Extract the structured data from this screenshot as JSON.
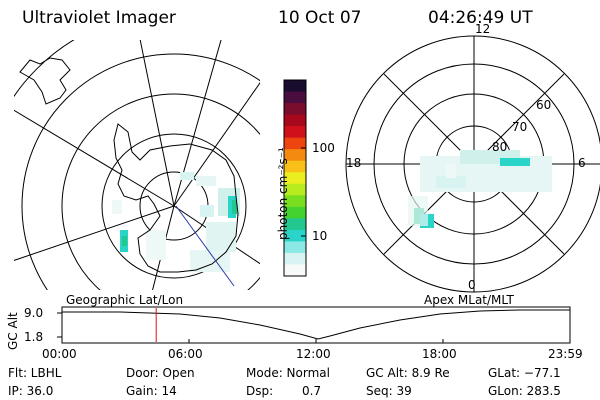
{
  "header": {
    "instrument": "Ultraviolet Imager",
    "date": "10 Oct 07",
    "time": "04:26:49 UT"
  },
  "colorbar": {
    "unit_label": "photon cm⁻²s⁻¹",
    "ticks": [
      "100",
      "10"
    ],
    "colors": [
      "#1a0c2e",
      "#4a0e3e",
      "#7a0c2e",
      "#a8081c",
      "#d0101a",
      "#ee4410",
      "#f58a10",
      "#f8c018",
      "#eaee1e",
      "#b8ec1e",
      "#7ade20",
      "#44d230",
      "#22c890",
      "#2ad4c8",
      "#8ce8e4",
      "#d8f4f2",
      "#f8fafa"
    ]
  },
  "geographic_panel": {
    "label": "Geographic Lat/Lon"
  },
  "apex_panel": {
    "label": "Apex MLat/MLT",
    "mlt_labels": {
      "top": "12",
      "left": "18",
      "right": "6",
      "bottom": "0"
    },
    "lat_labels": [
      "60",
      "70",
      "80"
    ]
  },
  "timeline": {
    "y_axis_label": "GC Alt",
    "y_ticks": [
      "9.0",
      "1.8"
    ],
    "x_ticks": [
      "00:00",
      "06:00",
      "12:00",
      "18:00",
      "23:59"
    ],
    "current_time_hours": 4.45
  },
  "footer": {
    "flt": "Flt: LBHL",
    "door": "Door: Open",
    "mode": "Mode: Normal",
    "gc_alt": "GC Alt: 8.9 Re",
    "glat": "GLat: −77.1",
    "ip": "IP: 36.0",
    "gain": "Gain: 14",
    "dsp_label": "Dsp:",
    "dsp_value": "0.7",
    "seq": "Seq: 39",
    "glon": "GLon: 283.5"
  }
}
